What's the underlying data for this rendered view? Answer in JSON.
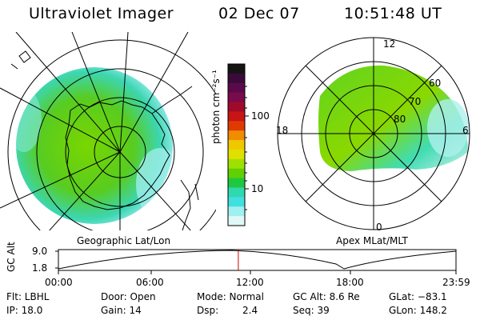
{
  "header": {
    "title": "Ultraviolet Imager",
    "date": "02 Dec 07",
    "time": "10:51:48 UT"
  },
  "geo_panel": {
    "label": "Geographic Lat/Lon"
  },
  "mag_panel": {
    "label": "Apex MLat/MLT",
    "mlt_labels": {
      "top": "12",
      "right": "6",
      "bottom": "0",
      "left": "18"
    },
    "lat_labels": [
      "60",
      "70",
      "80"
    ]
  },
  "colorbar": {
    "unit_label": "photon cm⁻²s⁻¹",
    "ticks": [
      "100",
      "10"
    ],
    "colors": [
      "#141414",
      "#3a0a3a",
      "#5a0a4a",
      "#7a0a4a",
      "#a00a2a",
      "#c81414",
      "#e03a00",
      "#f08c00",
      "#f0c800",
      "#e0e000",
      "#a0e000",
      "#60d000",
      "#20c840",
      "#30d8b0",
      "#40e0e0",
      "#a0f0f0",
      "#e0f8f8"
    ]
  },
  "altitude_plot": {
    "ylabel": "GC Alt",
    "yticks": [
      "9.0",
      "1.8"
    ],
    "xticks": [
      "00:00",
      "06:00",
      "12:00",
      "18:00",
      "23:59"
    ],
    "marker_hour": 10.86
  },
  "footer": {
    "flt": "Flt: LBHL",
    "ip": "IP: 18.0",
    "door": "Door: Open",
    "gain": "Gain: 14",
    "mode": "Mode: Normal",
    "dsp_label": "Dsp:",
    "dsp_value": "2.4",
    "gc_alt": "GC Alt: 8.6 Re",
    "seq": "Seq: 39",
    "glat": "GLat: −83.1",
    "glon": "GLon: 148.2"
  }
}
